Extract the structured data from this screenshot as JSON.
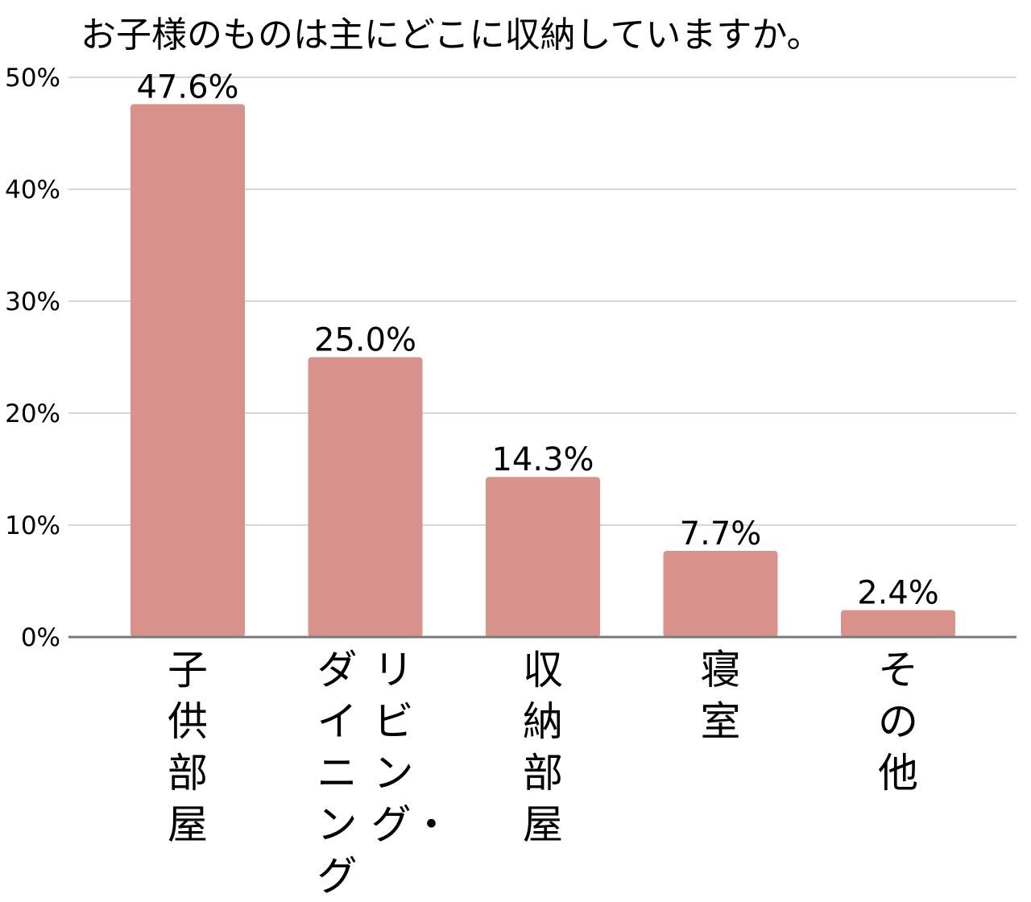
{
  "chart_data": {
    "type": "bar",
    "title": "お子様のものは主にどこに収納していますか。",
    "categories": [
      {
        "lines": [
          "子供部屋"
        ]
      },
      {
        "lines": [
          "リビング・",
          "ダイニング"
        ]
      },
      {
        "lines": [
          "収納部屋"
        ]
      },
      {
        "lines": [
          "寝室"
        ]
      },
      {
        "lines": [
          "その他"
        ]
      }
    ],
    "values": [
      47.6,
      25.0,
      14.3,
      7.7,
      2.4
    ],
    "value_labels": [
      "47.6%",
      "25.0%",
      "14.3%",
      "7.7%",
      "2.4%"
    ],
    "ylim": [
      0,
      50
    ],
    "yticks": [
      0,
      10,
      20,
      30,
      40,
      50
    ],
    "ytick_labels": [
      "0%",
      "10%",
      "20%",
      "30%",
      "40%",
      "50%"
    ],
    "grid": true,
    "legend": "none",
    "xlabel": "",
    "ylabel": "",
    "colors": {
      "bar": "#d8918b",
      "grid": "#d6d6d6",
      "axis": "#7a7a7a"
    }
  }
}
